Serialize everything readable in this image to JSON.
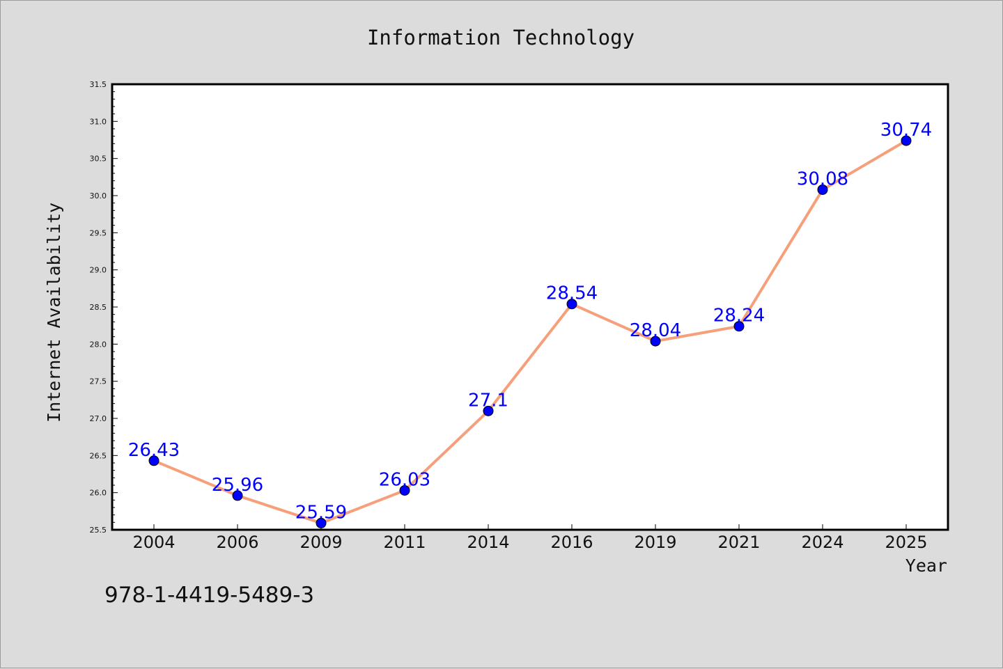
{
  "chart_data": {
    "type": "line",
    "title": "Information Technology",
    "xlabel": "Year",
    "ylabel": "Internet Availability",
    "categories": [
      "2004",
      "2006",
      "2009",
      "2011",
      "2014",
      "2016",
      "2019",
      "2021",
      "2024",
      "2025"
    ],
    "series": [
      {
        "values": [
          26.43,
          25.96,
          25.59,
          26.03,
          27.1,
          28.54,
          28.04,
          28.24,
          30.08,
          30.74
        ],
        "labels": [
          "26.43",
          "25.96",
          "25.59",
          "26.03",
          "27.1",
          "28.54",
          "28.04",
          "28.24",
          "30.08",
          "30.74"
        ],
        "line_color": "#f5a07a",
        "marker_color": "#0000ff"
      }
    ],
    "ylim": [
      25.5,
      31.5
    ],
    "yticks": [
      "25.5",
      "26.0",
      "26.5",
      "27.0",
      "27.5",
      "28.0",
      "28.5",
      "29.0",
      "29.5",
      "30.0",
      "30.5",
      "31.0",
      "31.5"
    ],
    "grid": false,
    "legend": "none",
    "annotation": "978-1-4419-5489-3"
  },
  "colors": {
    "background": "#dcdcdc",
    "plot_background": "#ffffff",
    "label_color": "#0000ff"
  }
}
